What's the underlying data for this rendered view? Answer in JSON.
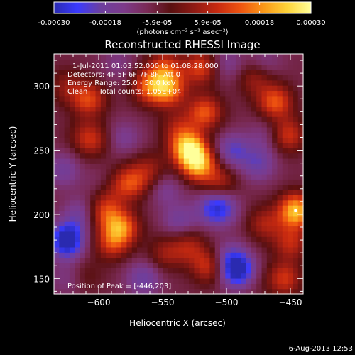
{
  "colorbar": {
    "tick_labels": [
      "-0.00030",
      "-0.00018",
      "-5.9e-05",
      "5.9e-05",
      "0.00018",
      "0.00030"
    ],
    "tick_values": [
      -0.0003,
      -0.00018,
      -5.9e-05,
      5.9e-05,
      0.00018,
      0.0003
    ],
    "range": [
      -0.0003,
      0.0003
    ],
    "units_label": "(photons cm⁻² s⁻¹ asec⁻²)",
    "stops": [
      "#2a2ab0",
      "#3a3aff",
      "#6d3f9f",
      "#7d3a8a",
      "#7a2a55",
      "#5a1010",
      "#8f1a14",
      "#c82a10",
      "#ef5510",
      "#fa9a18",
      "#fdd43a",
      "#ffff9a"
    ]
  },
  "chart_data": {
    "type": "heatmap",
    "title": "Reconstructed RHESSI Image",
    "xlabel": "Heliocentric X (arcsec)",
    "ylabel": "Heliocentric Y (arcsec)",
    "xlim": [
      -635,
      -440
    ],
    "ylim": [
      138,
      325
    ],
    "x_ticks": [
      -600,
      -550,
      -500,
      -450
    ],
    "x_tick_labels": [
      "−600",
      "−550",
      "−500",
      "−450"
    ],
    "y_ticks": [
      150,
      200,
      250,
      300
    ],
    "y_tick_labels": [
      "150",
      "200",
      "250",
      "300"
    ],
    "annotations": [
      "1-Jul-2011 01:03:52.000 to 01:08:28.000",
      "Detectors: 4F 5F 6F 7F 8F, Att 0",
      "Energy Range: 25.0 - 50.0 keV",
      "Clean     Total counts: 1.05E+04"
    ],
    "peak_label": "Position of Peak = [-446,203]",
    "peak": [
      -446,
      203
    ],
    "blobs": [
      {
        "x": -625,
        "y": 300,
        "v": 9e-05
      },
      {
        "x": -608,
        "y": 290,
        "v": 0.00018
      },
      {
        "x": -612,
        "y": 262,
        "v": 5e-05
      },
      {
        "x": -605,
        "y": 258,
        "v": 0.00012
      },
      {
        "x": -560,
        "y": 300,
        "v": 0.0002
      },
      {
        "x": -548,
        "y": 315,
        "v": 0.00016
      },
      {
        "x": -545,
        "y": 298,
        "v": 0.00022
      },
      {
        "x": -520,
        "y": 315,
        "v": 0.00018
      },
      {
        "x": -517,
        "y": 280,
        "v": 0.0002
      },
      {
        "x": -478,
        "y": 306,
        "v": 0.0001
      },
      {
        "x": -462,
        "y": 288,
        "v": 0.0002
      },
      {
        "x": -452,
        "y": 262,
        "v": 0.00016
      },
      {
        "x": -538,
        "y": 268,
        "v": 0.0001
      },
      {
        "x": -530,
        "y": 252,
        "v": 0.0003
      },
      {
        "x": -522,
        "y": 240,
        "v": 0.00028
      },
      {
        "x": -505,
        "y": 226,
        "v": 0.00012
      },
      {
        "x": -560,
        "y": 235,
        "v": 0.0001
      },
      {
        "x": -575,
        "y": 225,
        "v": 0.00018
      },
      {
        "x": -590,
        "y": 218,
        "v": 5e-05
      },
      {
        "x": -595,
        "y": 202,
        "v": 0.00016
      },
      {
        "x": -590,
        "y": 178,
        "v": 0.00015
      },
      {
        "x": -582,
        "y": 190,
        "v": 0.00022
      },
      {
        "x": -548,
        "y": 170,
        "v": 0.0001
      },
      {
        "x": -530,
        "y": 175,
        "v": 0.00012
      },
      {
        "x": -514,
        "y": 160,
        "v": 0.00016
      },
      {
        "x": -470,
        "y": 193,
        "v": 0.00012
      },
      {
        "x": -446,
        "y": 203,
        "v": 0.0003
      },
      {
        "x": -450,
        "y": 178,
        "v": 0.00014
      },
      {
        "x": -455,
        "y": 150,
        "v": 0.00016
      },
      {
        "x": -485,
        "y": 150,
        "v": 6e-05
      },
      {
        "x": -610,
        "y": 152,
        "v": 5e-05
      },
      {
        "x": -600,
        "y": 225,
        "v": -3e-05
      },
      {
        "x": -625,
        "y": 180,
        "v": -0.00028
      },
      {
        "x": -615,
        "y": 200,
        "v": -0.0001
      },
      {
        "x": -625,
        "y": 150,
        "v": -6e-05
      },
      {
        "x": -565,
        "y": 150,
        "v": -0.00012
      },
      {
        "x": -537,
        "y": 195,
        "v": -0.0001
      },
      {
        "x": -548,
        "y": 220,
        "v": -8e-05
      },
      {
        "x": -515,
        "y": 205,
        "v": -6e-05
      },
      {
        "x": -505,
        "y": 205,
        "v": -0.00018
      },
      {
        "x": -490,
        "y": 155,
        "v": -0.00026
      },
      {
        "x": -497,
        "y": 165,
        "v": -0.00014
      },
      {
        "x": -475,
        "y": 240,
        "v": -0.00012
      },
      {
        "x": -470,
        "y": 262,
        "v": -6e-05
      },
      {
        "x": -495,
        "y": 250,
        "v": -0.00014
      },
      {
        "x": -580,
        "y": 260,
        "v": -8e-05
      },
      {
        "x": -628,
        "y": 235,
        "v": -0.0001
      },
      {
        "x": -500,
        "y": 318,
        "v": -8e-05
      },
      {
        "x": -585,
        "y": 318,
        "v": -6e-05
      },
      {
        "x": -470,
        "y": 320,
        "v": -6e-05
      }
    ]
  },
  "footer": {
    "timestamp": "6-Aug-2013 12:53"
  }
}
